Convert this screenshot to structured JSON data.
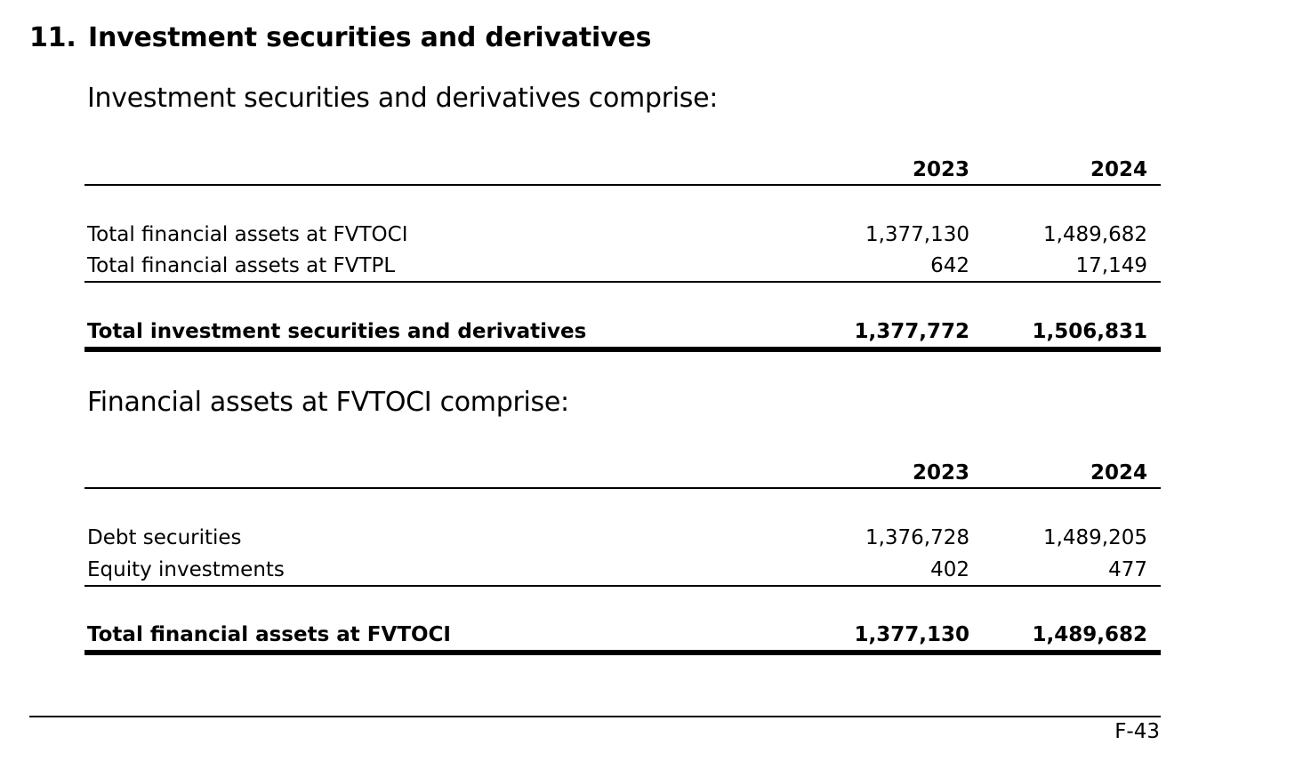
{
  "section": {
    "number": "11.",
    "title": "Investment securities and derivatives"
  },
  "table1": {
    "intro": "Investment securities and derivatives comprise:",
    "header": {
      "col1": "2023",
      "col2": "2024"
    },
    "rows": [
      {
        "label": "Total financial assets at FVTOCI",
        "v2023": "1,377,130",
        "v2024": "1,489,682"
      },
      {
        "label": "Total financial assets at FVTPL",
        "v2023": "642",
        "v2024": "17,149"
      }
    ],
    "total": {
      "label": "Total investment securities and derivatives",
      "v2023": "1,377,772",
      "v2024": "1,506,831"
    }
  },
  "table2": {
    "intro": "Financial assets at FVTOCI comprise:",
    "header": {
      "col1": "2023",
      "col2": "2024"
    },
    "rows": [
      {
        "label": "Debt securities",
        "v2023": "1,376,728",
        "v2024": "1,489,205"
      },
      {
        "label": "Equity investments",
        "v2023": "402",
        "v2024": "477"
      }
    ],
    "total": {
      "label": "Total financial assets at FVTOCI",
      "v2023": "1,377,130",
      "v2024": "1,489,682"
    }
  },
  "footer": {
    "page_number": "F-43"
  }
}
